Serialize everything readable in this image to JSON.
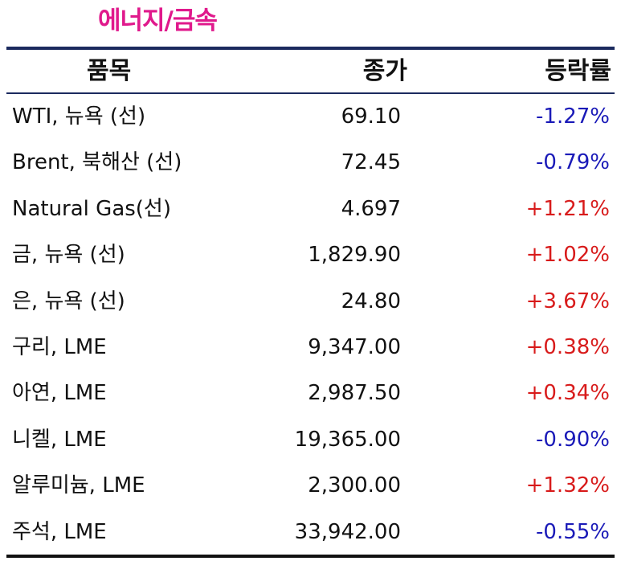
{
  "title": "에너지/금속",
  "header": {
    "name": "품목",
    "close": "종가",
    "change": "등락률"
  },
  "colors": {
    "title": "#e0198c",
    "negative": "#1a1ab8",
    "positive": "#d81b1b",
    "rule": "#1b2a5e"
  },
  "rows": [
    {
      "name": "WTI, 뉴욕 (선)",
      "close": "69.10",
      "change": "-1.27%",
      "dir": "neg"
    },
    {
      "name": "Brent, 북해산 (선)",
      "close": "72.45",
      "change": "-0.79%",
      "dir": "neg"
    },
    {
      "name": "Natural Gas(선)",
      "close": "4.697",
      "change": "+1.21%",
      "dir": "pos"
    },
    {
      "name": "금, 뉴욕  (선)",
      "close": "1,829.90",
      "change": "+1.02%",
      "dir": "pos"
    },
    {
      "name": "은, 뉴욕  (선)",
      "close": "24.80",
      "change": "+3.67%",
      "dir": "pos"
    },
    {
      "name": "구리, LME",
      "close": "9,347.00",
      "change": "+0.38%",
      "dir": "pos"
    },
    {
      "name": "아연, LME",
      "close": "2,987.50",
      "change": "+0.34%",
      "dir": "pos"
    },
    {
      "name": "니켈, LME",
      "close": "19,365.00",
      "change": "-0.90%",
      "dir": "neg"
    },
    {
      "name": "알루미늄, LME",
      "close": "2,300.00",
      "change": "+1.32%",
      "dir": "pos"
    },
    {
      "name": "주석, LME",
      "close": "33,942.00",
      "change": "-0.55%",
      "dir": "neg"
    }
  ]
}
